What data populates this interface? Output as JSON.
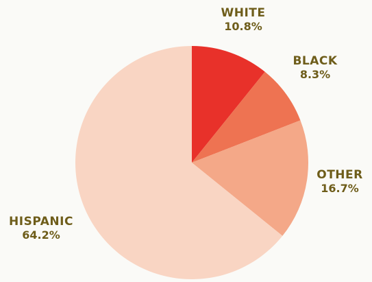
{
  "chart_data": {
    "type": "pie",
    "title": "",
    "slices": [
      {
        "label": "WHITE",
        "value": 10.8,
        "display": "10.8%",
        "color": "#e8312a"
      },
      {
        "label": "BLACK",
        "value": 8.3,
        "display": "8.3%",
        "color": "#ee7352"
      },
      {
        "label": "OTHER",
        "value": 16.7,
        "display": "16.7%",
        "color": "#f4a888"
      },
      {
        "label": "HISPANIC",
        "value": 64.2,
        "display": "64.2%",
        "color": "#f9d5c3"
      }
    ],
    "start_angle_deg": 0,
    "direction": "clockwise",
    "legend": "none"
  }
}
